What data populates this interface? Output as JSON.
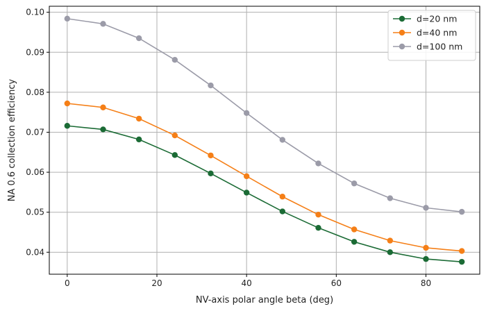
{
  "chart_data": {
    "type": "line",
    "xlabel": "NV-axis polar angle beta (deg)",
    "ylabel": "NA 0.6 collection efficiency",
    "xlim": [
      -4,
      92
    ],
    "ylim": [
      0.0345,
      0.1015
    ],
    "xticks": [
      "0",
      "20",
      "40",
      "60",
      "80"
    ],
    "xtick_values": [
      0,
      20,
      40,
      60,
      80
    ],
    "yticks": [
      "0.04",
      "0.05",
      "0.06",
      "0.07",
      "0.08",
      "0.09",
      "0.10"
    ],
    "ytick_values": [
      0.04,
      0.05,
      0.06,
      0.07,
      0.08,
      0.09,
      0.1
    ],
    "grid": true,
    "legend_position": "top-right",
    "x": [
      0,
      8,
      16,
      24,
      32,
      40,
      48,
      56,
      64,
      72,
      80,
      88
    ],
    "series": [
      {
        "name": "d=20 nm",
        "color": "#1b6b35",
        "values": [
          0.0716,
          0.0707,
          0.0682,
          0.0643,
          0.0597,
          0.0549,
          0.0502,
          0.0461,
          0.0426,
          0.04,
          0.0383,
          0.0376
        ]
      },
      {
        "name": "d=40 nm",
        "color": "#f57f17",
        "values": [
          0.0772,
          0.0762,
          0.0734,
          0.0692,
          0.0642,
          0.059,
          0.0539,
          0.0494,
          0.0457,
          0.0429,
          0.0411,
          0.0403
        ]
      },
      {
        "name": "d=100 nm",
        "color": "#9b9ba8",
        "values": [
          0.0984,
          0.0971,
          0.0935,
          0.0881,
          0.0817,
          0.0748,
          0.0681,
          0.0622,
          0.0572,
          0.0535,
          0.0511,
          0.0501
        ]
      }
    ]
  }
}
